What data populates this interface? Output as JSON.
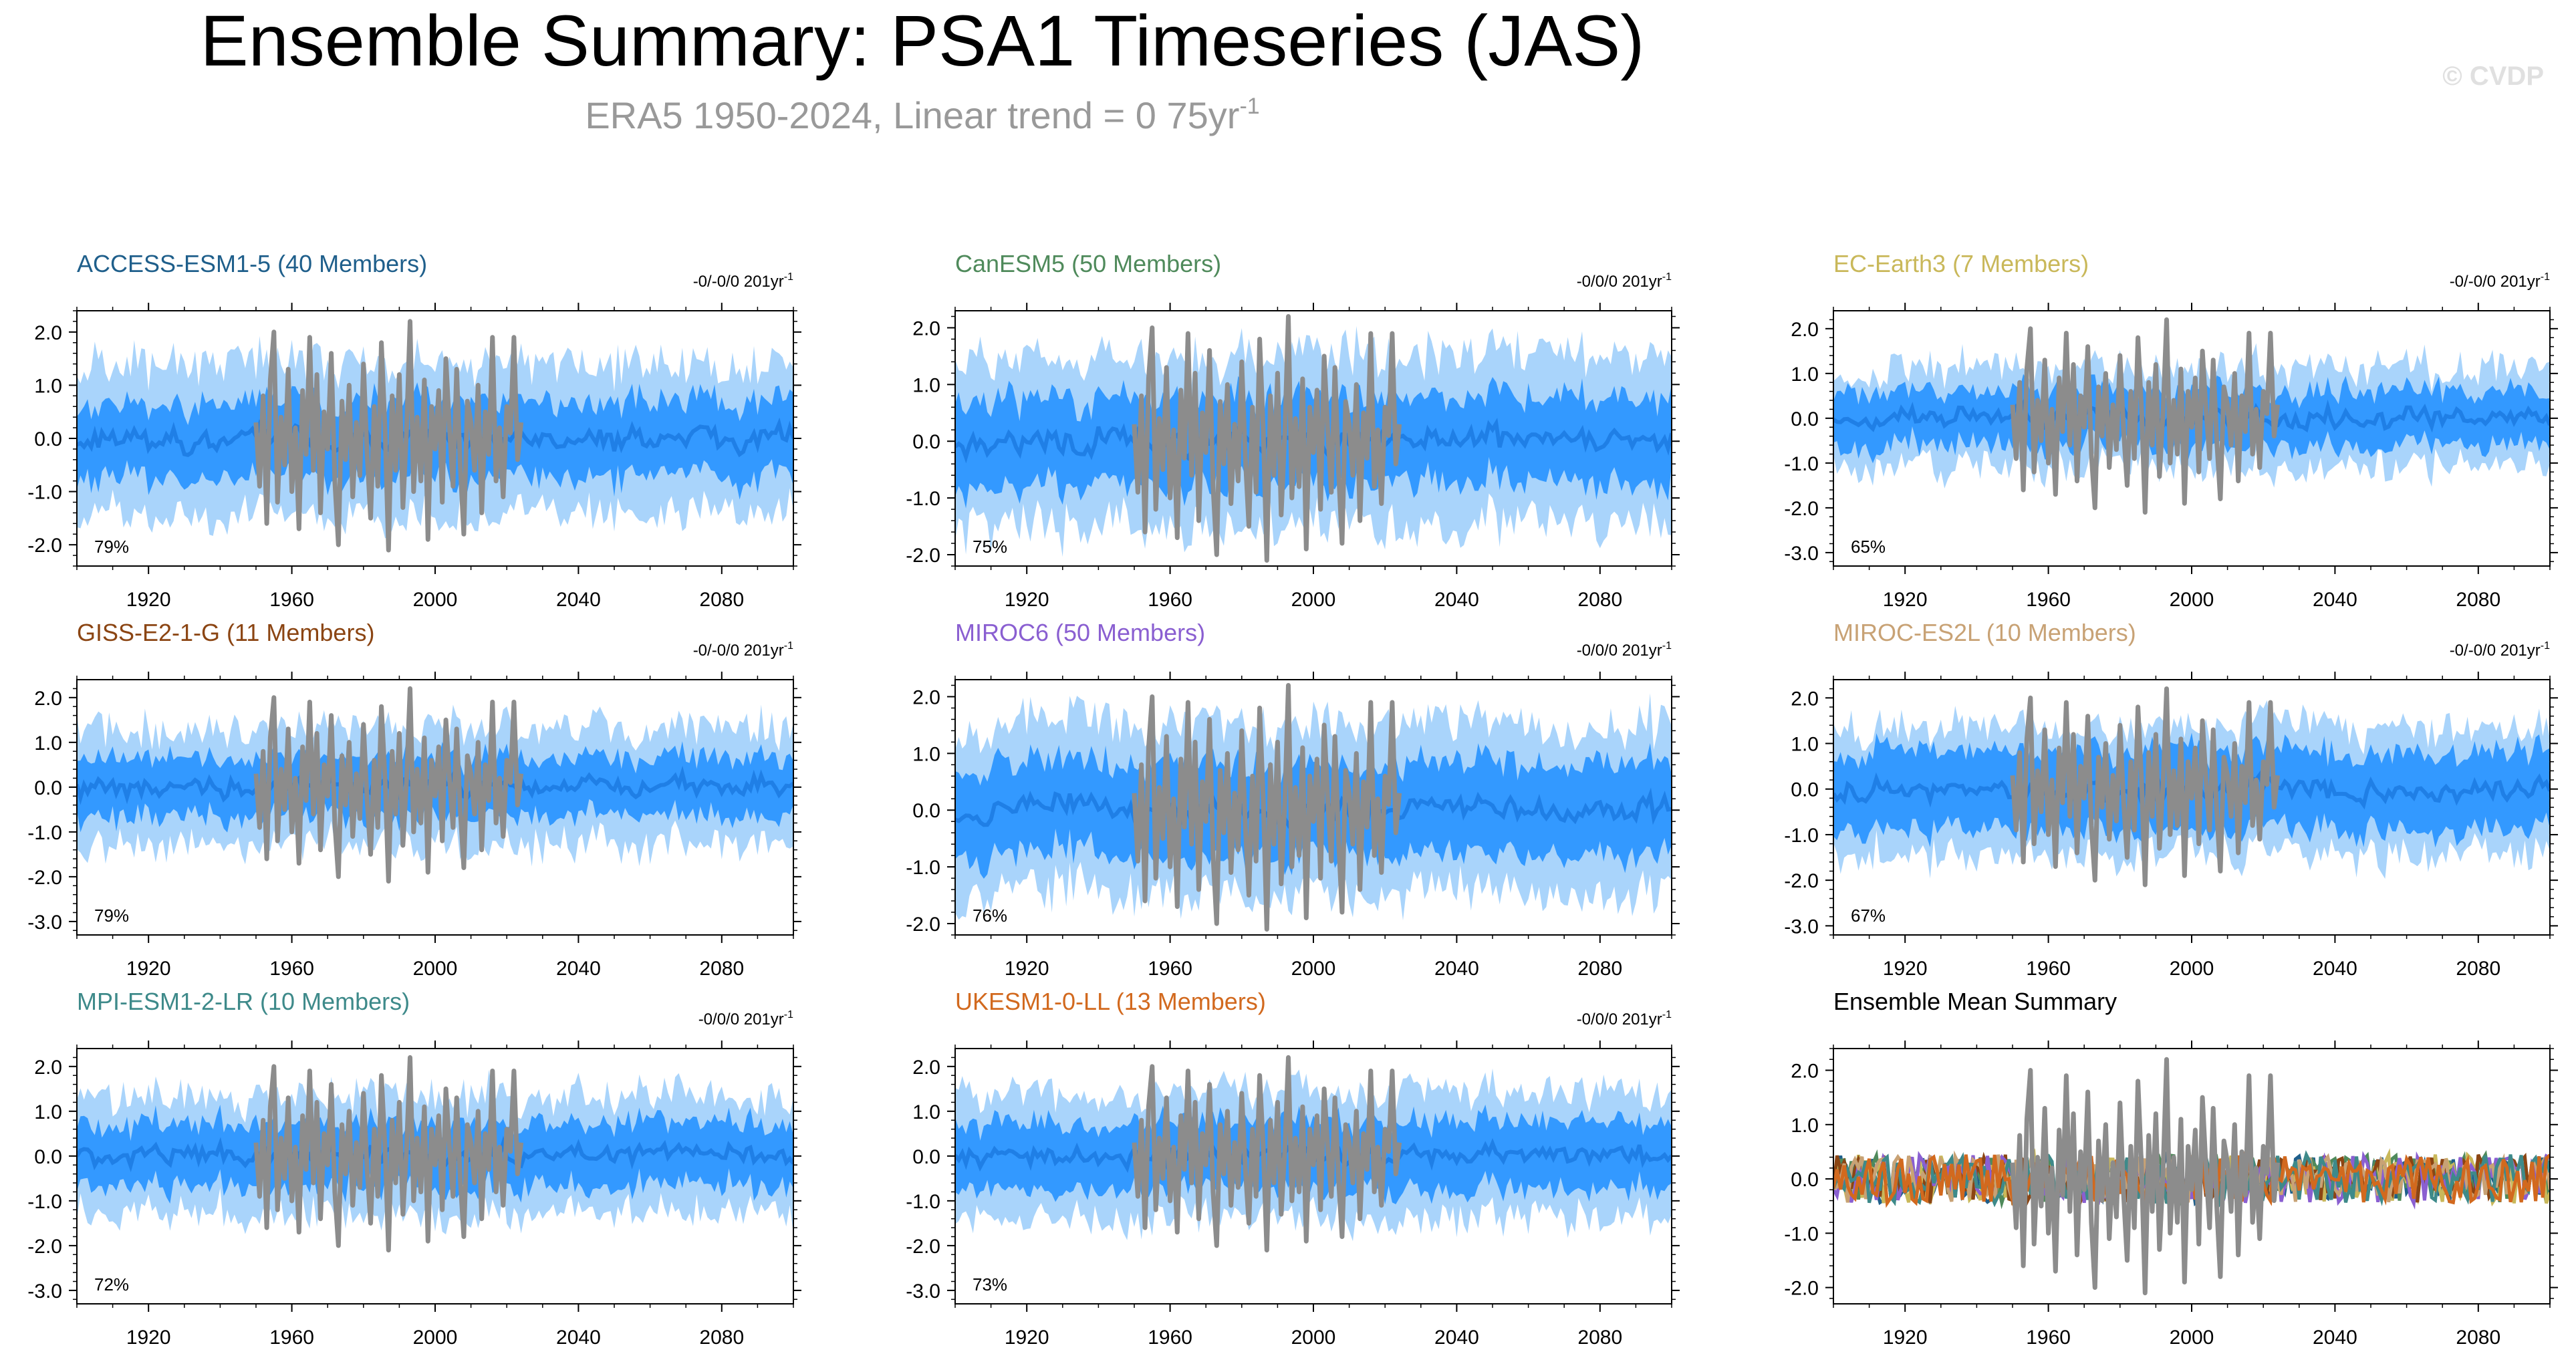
{
  "page": {
    "title": "Ensemble Summary: PSA1 Timeseries (JAS)",
    "subtitle": "ERA5 1950-2024, Linear trend = 0 75yr",
    "subtitle_sup": "-1",
    "copyright": "© CVDP"
  },
  "colors": {
    "band_outer": "#a9d4fb",
    "band_inner": "#3399ff",
    "ens_mean_line": "#1f7fe6",
    "obs_line": "#8c8c8c",
    "axis": "#000000"
  },
  "chart_data": [
    {
      "type": "line",
      "id": "access",
      "title": "ACCESS-ESM1-5 (40 Members)",
      "title_color": "#1f5f8b",
      "trend_label": "-0/-0/0 201yr",
      "trend_sup": "-1",
      "pct_label": "79%",
      "ylim": [
        -2.4,
        2.4
      ],
      "yticks": [
        -2.0,
        -1.0,
        0.0,
        1.0,
        2.0
      ],
      "ytick_labels": [
        "-2.0",
        "-1.0",
        "0.0",
        "1.0",
        "2.0"
      ],
      "xlim": [
        1900,
        2100
      ],
      "xticks": [
        1920,
        1960,
        2000,
        2040,
        2080
      ],
      "xtick_labels": [
        "1920",
        "1960",
        "2000",
        "2040",
        "2080"
      ],
      "outer_halfwidth": 1.4,
      "inner_halfwidth": 0.7,
      "seed": 11
    },
    {
      "type": "line",
      "id": "canesm",
      "title": "CanESM5 (50 Members)",
      "title_color": "#4f8a5b",
      "trend_label": "-0/0/0 201yr",
      "trend_sup": "-1",
      "pct_label": "75%",
      "ylim": [
        -2.2,
        2.3
      ],
      "yticks": [
        -2.0,
        -1.0,
        0.0,
        1.0,
        2.0
      ],
      "ytick_labels": [
        "-2.0",
        "-1.0",
        "0.0",
        "1.0",
        "2.0"
      ],
      "xlim": [
        1900,
        2100
      ],
      "xticks": [
        1920,
        1960,
        2000,
        2040,
        2080
      ],
      "xtick_labels": [
        "1920",
        "1960",
        "2000",
        "2040",
        "2080"
      ],
      "outer_halfwidth": 1.5,
      "inner_halfwidth": 0.75,
      "seed": 23
    },
    {
      "type": "line",
      "id": "ecearth",
      "title": "EC-Earth3 (7 Members)",
      "title_color": "#c9b85a",
      "trend_label": "-0/-0/0 201yr",
      "trend_sup": "-1",
      "pct_label": "65%",
      "ylim": [
        -3.3,
        2.4
      ],
      "yticks": [
        -3.0,
        -2.0,
        -1.0,
        0.0,
        1.0,
        2.0
      ],
      "ytick_labels": [
        "-3.0",
        "-2.0",
        "-1.0",
        "0.0",
        "1.0",
        "2.0"
      ],
      "xlim": [
        1900,
        2100
      ],
      "xticks": [
        1920,
        1960,
        2000,
        2040,
        2080
      ],
      "xtick_labels": [
        "1920",
        "1960",
        "2000",
        "2040",
        "2080"
      ],
      "outer_halfwidth": 1.1,
      "inner_halfwidth": 0.6,
      "seed": 37
    },
    {
      "type": "line",
      "id": "giss",
      "title": "GISS-E2-1-G (11 Members)",
      "title_color": "#8b4513",
      "trend_label": "-0/-0/0 201yr",
      "trend_sup": "-1",
      "pct_label": "79%",
      "ylim": [
        -3.3,
        2.4
      ],
      "yticks": [
        -3.0,
        -2.0,
        -1.0,
        0.0,
        1.0,
        2.0
      ],
      "ytick_labels": [
        "-3.0",
        "-2.0",
        "-1.0",
        "0.0",
        "1.0",
        "2.0"
      ],
      "xlim": [
        1900,
        2100
      ],
      "xticks": [
        1920,
        1960,
        2000,
        2040,
        2080
      ],
      "xtick_labels": [
        "1920",
        "1960",
        "2000",
        "2040",
        "2080"
      ],
      "outer_halfwidth": 1.3,
      "inner_halfwidth": 0.65,
      "seed": 41
    },
    {
      "type": "line",
      "id": "miroc6",
      "title": "MIROC6 (50 Members)",
      "title_color": "#8a5fd1",
      "trend_label": "-0/0/0 201yr",
      "trend_sup": "-1",
      "pct_label": "76%",
      "ylim": [
        -2.2,
        2.3
      ],
      "yticks": [
        -2.0,
        -1.0,
        0.0,
        1.0,
        2.0
      ],
      "ytick_labels": [
        "-2.0",
        "-1.0",
        "0.0",
        "1.0",
        "2.0"
      ],
      "xlim": [
        1900,
        2100
      ],
      "xticks": [
        1920,
        1960,
        2000,
        2040,
        2080
      ],
      "xtick_labels": [
        "1920",
        "1960",
        "2000",
        "2040",
        "2080"
      ],
      "outer_halfwidth": 1.5,
      "inner_halfwidth": 0.8,
      "seed": 53
    },
    {
      "type": "line",
      "id": "mirocesl",
      "title": "MIROC-ES2L (10 Members)",
      "title_color": "#c8a275",
      "trend_label": "-0/-0/0 201yr",
      "trend_sup": "-1",
      "pct_label": "67%",
      "ylim": [
        -3.2,
        2.4
      ],
      "yticks": [
        -3.0,
        -2.0,
        -1.0,
        0.0,
        1.0,
        2.0
      ],
      "ytick_labels": [
        "-3.0",
        "-2.0",
        "-1.0",
        "0.0",
        "1.0",
        "2.0"
      ],
      "xlim": [
        1900,
        2100
      ],
      "xticks": [
        1920,
        1960,
        2000,
        2040,
        2080
      ],
      "xtick_labels": [
        "1920",
        "1960",
        "2000",
        "2040",
        "2080"
      ],
      "outer_halfwidth": 1.4,
      "inner_halfwidth": 0.85,
      "seed": 67
    },
    {
      "type": "line",
      "id": "mpi",
      "title": "MPI-ESM1-2-LR (10 Members)",
      "title_color": "#3e8a8a",
      "trend_label": "-0/0/0 201yr",
      "trend_sup": "-1",
      "pct_label": "72%",
      "ylim": [
        -3.3,
        2.4
      ],
      "yticks": [
        -3.0,
        -2.0,
        -1.0,
        0.0,
        1.0,
        2.0
      ],
      "ytick_labels": [
        "-3.0",
        "-2.0",
        "-1.0",
        "0.0",
        "1.0",
        "2.0"
      ],
      "xlim": [
        1900,
        2100
      ],
      "xticks": [
        1920,
        1960,
        2000,
        2040,
        2080
      ],
      "xtick_labels": [
        "1920",
        "1960",
        "2000",
        "2040",
        "2080"
      ],
      "outer_halfwidth": 1.3,
      "inner_halfwidth": 0.7,
      "seed": 71
    },
    {
      "type": "line",
      "id": "ukesm",
      "title": "UKESM1-0-LL (13 Members)",
      "title_color": "#d2691e",
      "trend_label": "-0/0/0 201yr",
      "trend_sup": "-1",
      "pct_label": "73%",
      "ylim": [
        -3.3,
        2.4
      ],
      "yticks": [
        -3.0,
        -2.0,
        -1.0,
        0.0,
        1.0,
        2.0
      ],
      "ytick_labels": [
        "-3.0",
        "-2.0",
        "-1.0",
        "0.0",
        "1.0",
        "2.0"
      ],
      "xlim": [
        1900,
        2100
      ],
      "xticks": [
        1920,
        1960,
        2000,
        2040,
        2080
      ],
      "xtick_labels": [
        "1920",
        "1960",
        "2000",
        "2040",
        "2080"
      ],
      "outer_halfwidth": 1.4,
      "inner_halfwidth": 0.75,
      "seed": 83
    },
    {
      "type": "line",
      "id": "summary",
      "title": "Ensemble Mean Summary",
      "title_color": "#000000",
      "ylim": [
        -2.3,
        2.4
      ],
      "yticks": [
        -2.0,
        -1.0,
        0.0,
        1.0,
        2.0
      ],
      "ytick_labels": [
        "-2.0",
        "-1.0",
        "0.0",
        "1.0",
        "2.0"
      ],
      "xlim": [
        1900,
        2100
      ],
      "xticks": [
        1920,
        1960,
        2000,
        2040,
        2080
      ],
      "xtick_labels": [
        "1920",
        "1960",
        "2000",
        "2040",
        "2080"
      ],
      "series": [
        {
          "name": "ACCESS-ESM1-5",
          "color": "#1f5f8b"
        },
        {
          "name": "CanESM5",
          "color": "#4f8a5b"
        },
        {
          "name": "EC-Earth3",
          "color": "#c9b85a"
        },
        {
          "name": "GISS-E2-1-G",
          "color": "#8b4513"
        },
        {
          "name": "MIROC6",
          "color": "#8a5fd1"
        },
        {
          "name": "MIROC-ES2L",
          "color": "#c8a275"
        },
        {
          "name": "MPI-ESM1-2-LR",
          "color": "#3e8a8a"
        },
        {
          "name": "UKESM1-0-LL",
          "color": "#d2691e"
        }
      ]
    }
  ],
  "obs": {
    "name": "ERA5",
    "years": [
      1950,
      1951,
      1952,
      1953,
      1954,
      1955,
      1956,
      1957,
      1958,
      1959,
      1960,
      1961,
      1962,
      1963,
      1964,
      1965,
      1966,
      1967,
      1968,
      1969,
      1970,
      1971,
      1972,
      1973,
      1974,
      1975,
      1976,
      1977,
      1978,
      1979,
      1980,
      1981,
      1982,
      1983,
      1984,
      1985,
      1986,
      1987,
      1988,
      1989,
      1990,
      1991,
      1992,
      1993,
      1994,
      1995,
      1996,
      1997,
      1998,
      1999,
      2000,
      2001,
      2002,
      2003,
      2004,
      2005,
      2006,
      2007,
      2008,
      2009,
      2010,
      2011,
      2012,
      2013,
      2014,
      2015,
      2016,
      2017,
      2018,
      2019,
      2020,
      2021,
      2022,
      2023,
      2024
    ],
    "values": [
      0.3,
      -0.9,
      0.8,
      -1.6,
      1.1,
      2.0,
      -1.2,
      0.4,
      -0.5,
      1.3,
      -1.0,
      0.2,
      -1.7,
      0.9,
      -0.3,
      1.9,
      -0.6,
      1.2,
      -1.4,
      0.5,
      -0.2,
      1.6,
      -0.8,
      -2.0,
      0.7,
      -0.4,
      1.0,
      -1.1,
      0.3,
      -0.7,
      1.4,
      -0.3,
      -1.5,
      0.6,
      -0.9,
      1.8,
      0.2,
      -2.1,
      0.8,
      -0.6,
      1.2,
      -1.3,
      0.1,
      2.2,
      -1.0,
      0.4,
      -0.8,
      1.1,
      -1.9,
      0.6,
      -0.2,
      0.9,
      -1.2,
      1.5,
      0.2,
      -0.9,
      1.3,
      -0.5,
      -1.8,
      0.7,
      0.3,
      -0.6,
      1.0,
      -1.4,
      0.5,
      -0.3,
      1.9,
      -0.8,
      0.2,
      -1.1,
      0.6,
      0.1,
      1.9,
      -0.4,
      0.3
    ]
  }
}
